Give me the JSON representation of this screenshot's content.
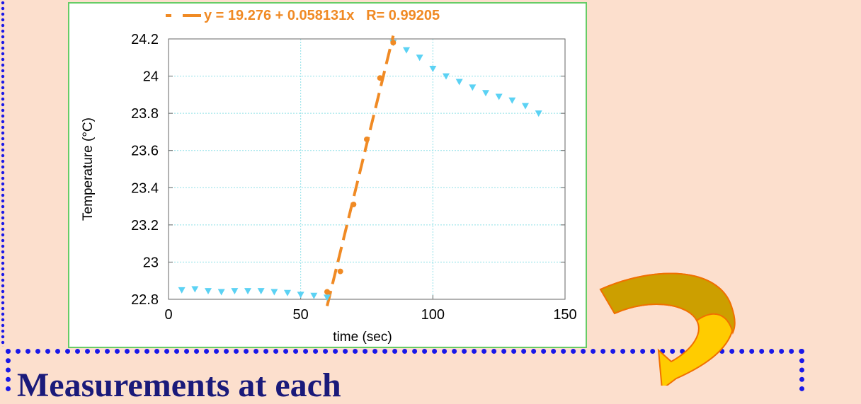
{
  "chart_data": {
    "type": "scatter",
    "xlabel": "time (sec)",
    "ylabel": "Temperature (°C)",
    "xlim": [
      0,
      150
    ],
    "ylim": [
      22.8,
      24.2
    ],
    "x_ticks": [
      "0",
      "50",
      "100",
      "150"
    ],
    "y_ticks": [
      "22.8",
      "23",
      "23.2",
      "23.4",
      "23.6",
      "23.8",
      "24",
      "24.2"
    ],
    "grid": true,
    "legend_position": "top",
    "series": [
      {
        "marker": "triangle-down",
        "color": "#5bd2f4",
        "x": [
          5,
          10,
          15,
          20,
          25,
          30,
          35,
          40,
          45,
          50,
          55,
          60,
          85,
          90,
          95,
          100,
          105,
          110,
          115,
          120,
          125,
          130,
          135,
          140
        ],
        "y": [
          22.85,
          22.855,
          22.845,
          22.84,
          22.845,
          22.845,
          22.845,
          22.84,
          22.835,
          22.825,
          22.82,
          22.81,
          24.18,
          24.14,
          24.1,
          24.04,
          24.0,
          23.97,
          23.94,
          23.91,
          23.89,
          23.87,
          23.84,
          23.8
        ]
      },
      {
        "marker": "circle",
        "color": "#f08a24",
        "x": [
          60,
          65,
          70,
          75,
          80,
          85
        ],
        "y": [
          22.84,
          22.95,
          23.31,
          23.66,
          23.99,
          24.18
        ]
      }
    ],
    "fit": {
      "label": "y = 19.276 + 0.058131x   R= 0.99205",
      "intercept": 19.276,
      "slope": 0.058131,
      "x_range": [
        60,
        85
      ],
      "color": "#f08a24"
    }
  },
  "bottom_box": {
    "text": "Measurements at each"
  }
}
